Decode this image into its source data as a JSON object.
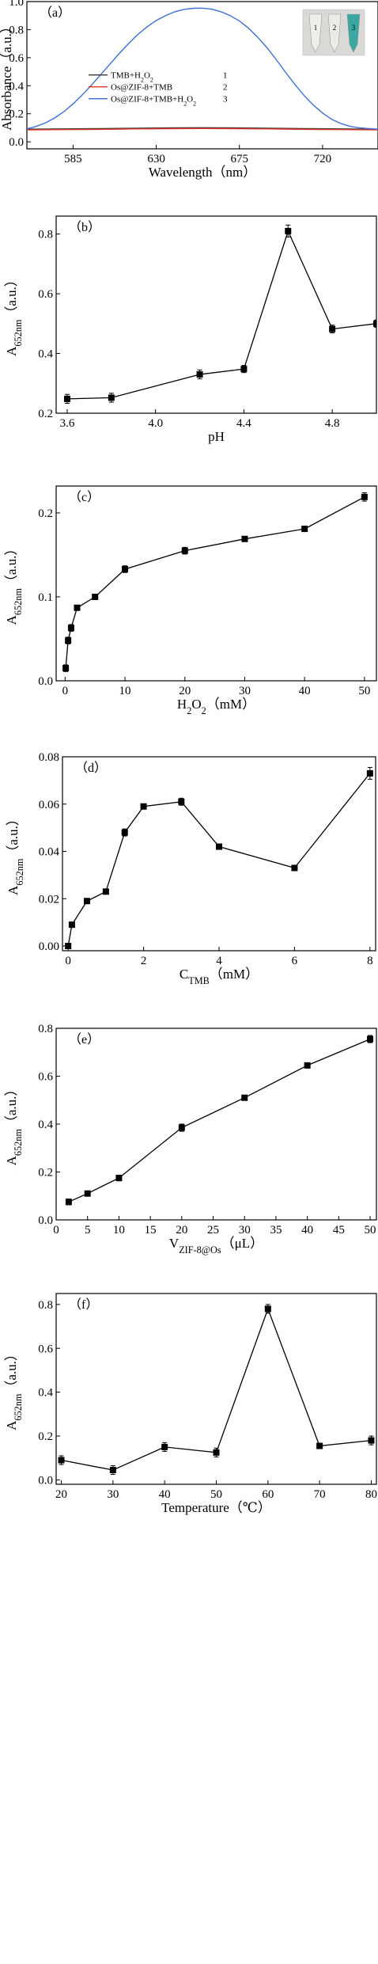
{
  "chart_data": [
    {
      "type": "line",
      "panel_label": "（a）",
      "xlabel_parts": [
        {
          "t": "Wavelength（nm）"
        }
      ],
      "ylabel_parts": [
        {
          "t": "Absorbance（a.u.）"
        }
      ],
      "xlim": [
        560,
        750
      ],
      "ylim": [
        -0.05,
        1.0
      ],
      "xticks": [
        585,
        630,
        675,
        720
      ],
      "yticks": [
        0.0,
        0.2,
        0.4,
        0.6,
        0.8,
        1.0
      ],
      "ytick_labels": [
        "0.0",
        "0.2",
        "0.4",
        "0.6",
        "0.8",
        "1.0"
      ],
      "legend_position": "center-left",
      "inset_numbers": [
        "1",
        "2",
        "3"
      ],
      "series": [
        {
          "legend": "TMB+H2O2",
          "legend_parts": [
            {
              "t": "TMB+H"
            },
            {
              "t": "2",
              "sub": true
            },
            {
              "t": "O"
            },
            {
              "t": "2",
              "sub": true
            }
          ],
          "legend_number": "1",
          "color": "#3a3a3a",
          "x": [
            560,
            580,
            600,
            620,
            640,
            655,
            670,
            690,
            710,
            730,
            750
          ],
          "y": [
            0.09,
            0.092,
            0.094,
            0.097,
            0.1,
            0.101,
            0.1,
            0.097,
            0.094,
            0.092,
            0.09
          ]
        },
        {
          "legend": "Os@ZIF-8+TMB",
          "legend_parts": [
            {
              "t": "Os@ZIF-8+TMB"
            }
          ],
          "legend_number": "2",
          "color": "#e0352b",
          "x": [
            560,
            580,
            600,
            620,
            640,
            655,
            670,
            690,
            710,
            730,
            750
          ],
          "y": [
            0.085,
            0.087,
            0.089,
            0.092,
            0.094,
            0.095,
            0.094,
            0.092,
            0.089,
            0.087,
            0.085
          ]
        },
        {
          "legend": "Os@ZIF-8+TMB+H2O2",
          "legend_parts": [
            {
              "t": "Os@ZIF-8+TMB+H"
            },
            {
              "t": "2",
              "sub": true
            },
            {
              "t": "O"
            },
            {
              "t": "2",
              "sub": true
            }
          ],
          "legend_number": "3",
          "color": "#3f6fd6",
          "x": [
            560,
            565,
            570,
            575,
            580,
            585,
            590,
            595,
            600,
            605,
            610,
            615,
            620,
            625,
            630,
            635,
            640,
            645,
            650,
            655,
            660,
            665,
            670,
            675,
            680,
            685,
            690,
            695,
            700,
            705,
            710,
            715,
            720,
            725,
            730,
            735,
            740,
            745,
            750
          ],
          "y": [
            0.092,
            0.11,
            0.135,
            0.17,
            0.215,
            0.27,
            0.335,
            0.405,
            0.48,
            0.555,
            0.63,
            0.7,
            0.765,
            0.82,
            0.865,
            0.9,
            0.927,
            0.944,
            0.952,
            0.953,
            0.946,
            0.928,
            0.9,
            0.862,
            0.81,
            0.745,
            0.67,
            0.585,
            0.495,
            0.41,
            0.33,
            0.262,
            0.205,
            0.16,
            0.13,
            0.11,
            0.1,
            0.094,
            0.09
          ]
        }
      ]
    },
    {
      "type": "line",
      "panel_label": "（b）",
      "xlabel_parts": [
        {
          "t": "pH"
        }
      ],
      "ylabel_parts": [
        {
          "t": "A"
        },
        {
          "t": "652nm",
          "sub": true
        },
        {
          "t": "（a.u.）"
        }
      ],
      "xlim": [
        3.55,
        5.0
      ],
      "ylim": [
        0.2,
        0.86
      ],
      "xticks": [
        3.6,
        4.0,
        4.4,
        4.8
      ],
      "xtick_labels": [
        "3.6",
        "4.0",
        "4.4",
        "4.8"
      ],
      "yticks": [
        0.2,
        0.4,
        0.6,
        0.8
      ],
      "ytick_labels": [
        "0.2",
        "0.4",
        "0.6",
        "0.8"
      ],
      "series": [
        {
          "x": [
            3.6,
            3.8,
            4.2,
            4.4,
            4.6,
            4.8,
            5.0
          ],
          "y": [
            0.248,
            0.252,
            0.33,
            0.348,
            0.81,
            0.482,
            0.5
          ],
          "err": [
            0.015,
            0.015,
            0.015,
            0.012,
            0.02,
            0.013,
            0.012
          ]
        }
      ]
    },
    {
      "type": "line",
      "panel_label": "（c）",
      "xlabel_parts": [
        {
          "t": "H"
        },
        {
          "t": "2",
          "sub": true
        },
        {
          "t": "O"
        },
        {
          "t": "2",
          "sub": true
        },
        {
          "t": "（mM）"
        }
      ],
      "ylabel_parts": [
        {
          "t": "A"
        },
        {
          "t": "652nm",
          "sub": true
        },
        {
          "t": "（a.u.）"
        }
      ],
      "xlim": [
        -1.5,
        52
      ],
      "ylim": [
        0.0,
        0.232
      ],
      "xticks": [
        0,
        10,
        20,
        30,
        40,
        50
      ],
      "yticks": [
        0.0,
        0.1,
        0.2
      ],
      "ytick_labels": [
        "0.0",
        "0.1",
        "0.2"
      ],
      "series": [
        {
          "x": [
            0.1,
            0.5,
            1,
            2,
            5,
            10,
            20,
            30,
            40,
            50
          ],
          "y": [
            0.015,
            0.048,
            0.063,
            0.087,
            0.1,
            0.133,
            0.155,
            0.169,
            0.181,
            0.219
          ],
          "err": [
            0.004,
            0.004,
            0.004,
            0.003,
            0.003,
            0.004,
            0.004,
            0.003,
            0.003,
            0.005
          ]
        }
      ]
    },
    {
      "type": "line",
      "panel_label": "（d）",
      "xlabel_parts": [
        {
          "t": "C"
        },
        {
          "t": "TMB",
          "sub": true
        },
        {
          "t": "（mM）"
        }
      ],
      "ylabel_parts": [
        {
          "t": "A"
        },
        {
          "t": "652nm",
          "sub": true
        },
        {
          "t": "（a.u.）"
        }
      ],
      "xlim": [
        -0.15,
        8.15
      ],
      "ylim": [
        -0.002,
        0.08
      ],
      "xticks": [
        0,
        2,
        4,
        6,
        8
      ],
      "yticks": [
        0.0,
        0.02,
        0.04,
        0.06,
        0.08
      ],
      "ytick_labels": [
        "0.00",
        "0.02",
        "0.04",
        "0.06",
        "0.08"
      ],
      "series": [
        {
          "x": [
            0.0,
            0.1,
            0.5,
            1.0,
            1.5,
            2.0,
            3.0,
            4.0,
            6.0,
            8.0
          ],
          "y": [
            0.0,
            0.009,
            0.019,
            0.023,
            0.048,
            0.059,
            0.061,
            0.042,
            0.033,
            0.073
          ],
          "err": [
            0.001,
            0.001,
            0.001,
            0.001,
            0.0015,
            0.001,
            0.0015,
            0.001,
            0.001,
            0.0025
          ]
        }
      ]
    },
    {
      "type": "line",
      "panel_label": "（e）",
      "xlabel_parts": [
        {
          "t": "V"
        },
        {
          "t": "ZIF-8@Os",
          "sub": true
        },
        {
          "t": "（μL）"
        }
      ],
      "ylabel_parts": [
        {
          "t": "A"
        },
        {
          "t": "652nm",
          "sub": true
        },
        {
          "t": "（a.u.）"
        }
      ],
      "xlim": [
        0,
        51
      ],
      "ylim": [
        0.0,
        0.8
      ],
      "xticks": [
        0,
        5,
        10,
        15,
        20,
        25,
        30,
        35,
        40,
        45,
        50
      ],
      "yticks": [
        0.0,
        0.2,
        0.4,
        0.6,
        0.8
      ],
      "ytick_labels": [
        "0.0",
        "0.2",
        "0.4",
        "0.6",
        "0.8"
      ],
      "series": [
        {
          "x": [
            2,
            5,
            10,
            20,
            30,
            40,
            50
          ],
          "y": [
            0.075,
            0.11,
            0.175,
            0.385,
            0.51,
            0.645,
            0.755
          ],
          "err": [
            0.012,
            0.01,
            0.012,
            0.015,
            0.01,
            0.01,
            0.015
          ]
        }
      ]
    },
    {
      "type": "line",
      "panel_label": "（f）",
      "xlabel_parts": [
        {
          "t": "Temperature（℃）"
        }
      ],
      "ylabel_parts": [
        {
          "t": "A"
        },
        {
          "t": "652nm",
          "sub": true
        },
        {
          "t": "（a.u.）"
        }
      ],
      "xlim": [
        19,
        81
      ],
      "ylim": [
        -0.02,
        0.85
      ],
      "xticks": [
        20,
        30,
        40,
        50,
        60,
        70,
        80
      ],
      "yticks": [
        0.0,
        0.2,
        0.4,
        0.6,
        0.8
      ],
      "ytick_labels": [
        "0.0",
        "0.2",
        "0.4",
        "0.6",
        "0.8"
      ],
      "series": [
        {
          "x": [
            20,
            30,
            40,
            50,
            60,
            70,
            80
          ],
          "y": [
            0.09,
            0.045,
            0.15,
            0.125,
            0.78,
            0.155,
            0.18
          ],
          "err": [
            0.02,
            0.02,
            0.02,
            0.02,
            0.02,
            0.01,
            0.02
          ]
        }
      ]
    }
  ]
}
